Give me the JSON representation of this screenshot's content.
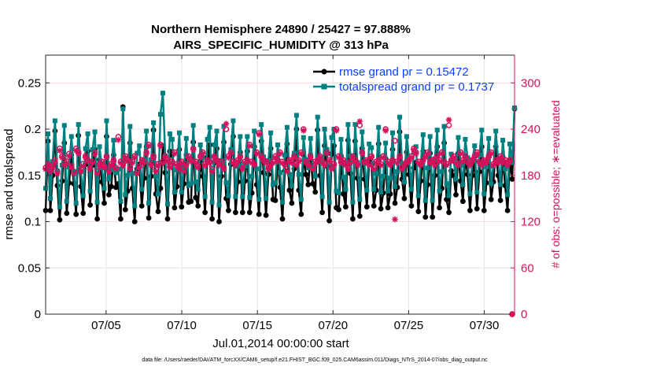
{
  "chart_data": {
    "type": "line",
    "title_line1": "Northern Hemisphere 24890 / 25427 = 97.888%",
    "title_line2": "AIRS_SPECIFIC_HUMIDITY @ 313 hPa",
    "xlabel": "Jul.01,2014 00:00:00 start",
    "ylabel_left": "rmse and totalspread",
    "ylabel_right": "# of obs: o=possible; ∗=evaluated",
    "footer": "data file: /Users/raeder/DAI/ATM_forcXX/CAM6_setup/f.e21.FHIST_BGC.f09_025.CAM6assim.011/Diags_NTrS_2014-07/obs_diag_output.nc",
    "x_ticks": [
      "07/05",
      "07/10",
      "07/15",
      "07/20",
      "07/25",
      "07/30"
    ],
    "x_tick_days": [
      5,
      10,
      15,
      20,
      25,
      30
    ],
    "xlim_days": [
      1.0,
      32.0
    ],
    "ylim_left": [
      0,
      0.28
    ],
    "yticks_left": [
      "0",
      "0.05",
      "0.1",
      "0.15",
      "0.2",
      "0.25"
    ],
    "yticks_left_values": [
      0,
      0.05,
      0.1,
      0.15,
      0.2,
      0.25
    ],
    "ylim_right": [
      0,
      336
    ],
    "yticks_right": [
      "0",
      "60",
      "120",
      "180",
      "240",
      "300"
    ],
    "yticks_right_values": [
      0,
      60,
      120,
      180,
      240,
      300
    ],
    "grid": true,
    "legend_location": "top-right",
    "colors": {
      "rmse": "#000000",
      "spread": "#008080",
      "obs": "#d6105b",
      "legend_text": "#0a3fff"
    },
    "series": [
      {
        "name": "rmse grand pr = 0.15472",
        "axis": "left",
        "values": [
          0.112,
          0.187,
          0.112,
          0.15,
          0.198,
          0.139,
          0.102,
          0.144,
          0.185,
          0.109,
          0.142,
          0.172,
          0.141,
          0.108,
          0.193,
          0.138,
          0.109,
          0.162,
          0.176,
          0.118,
          0.161,
          0.178,
          0.103,
          0.167,
          0.143,
          0.12,
          0.192,
          0.129,
          0.138,
          0.172,
          0.137,
          0.141,
          0.103,
          0.224,
          0.113,
          0.133,
          0.185,
          0.136,
          0.1,
          0.157,
          0.162,
          0.117,
          0.147,
          0.181,
          0.104,
          0.149,
          0.199,
          0.13,
          0.111,
          0.136,
          0.182,
          0.153,
          0.103,
          0.176,
          0.172,
          0.115,
          0.138,
          0.178,
          0.116,
          0.141,
          0.172,
          0.121,
          0.122,
          0.186,
          0.126,
          0.117,
          0.166,
          0.149,
          0.11,
          0.17,
          0.183,
          0.103,
          0.164,
          0.179,
          0.1,
          0.149,
          0.186,
          0.125,
          0.112,
          0.162,
          0.192,
          0.11,
          0.143,
          0.175,
          0.11,
          0.144,
          0.176,
          0.11,
          0.131,
          0.181,
          0.14,
          0.108,
          0.187,
          0.153,
          0.107,
          0.151,
          0.179,
          0.124,
          0.123,
          0.167,
          0.137,
          0.103,
          0.155,
          0.184,
          0.134,
          0.12,
          0.157,
          0.2,
          0.134,
          0.108,
          0.172,
          0.151,
          0.14,
          0.172,
          0.141,
          0.132,
          0.199,
          0.15,
          0.11,
          0.182,
          0.16,
          0.101,
          0.173,
          0.182,
          0.115,
          0.113,
          0.171,
          0.13,
          0.116,
          0.188,
          0.152,
          0.103,
          0.187,
          0.147,
          0.106,
          0.179,
          0.146,
          0.116,
          0.166,
          0.162,
          0.117,
          0.134,
          0.184,
          0.114,
          0.131,
          0.168,
          0.115,
          0.13,
          0.178,
          0.12,
          0.137,
          0.197,
          0.146,
          0.125,
          0.175,
          0.151,
          0.117,
          0.158,
          0.164,
          0.111,
          0.144,
          0.176,
          0.105,
          0.14,
          0.174,
          0.105,
          0.15,
          0.181,
          0.115,
          0.136,
          0.185,
          0.124,
          0.11,
          0.155,
          0.15,
          0.129,
          0.174,
          0.144,
          0.122,
          0.171,
          0.151,
          0.112,
          0.15,
          0.165,
          0.114,
          0.154,
          0.181,
          0.112,
          0.142,
          0.172,
          0.124,
          0.143,
          0.181,
          0.15,
          0.123,
          0.17,
          0.139,
          0.112,
          0.167,
          0.146,
          0.222
        ]
      },
      {
        "name": "totalspread grand pr = 0.1737",
        "axis": "left",
        "values": [
          0.136,
          0.195,
          0.125,
          0.165,
          0.209,
          0.155,
          0.116,
          0.161,
          0.204,
          0.122,
          0.159,
          0.192,
          0.154,
          0.12,
          0.205,
          0.154,
          0.128,
          0.179,
          0.195,
          0.133,
          0.178,
          0.197,
          0.121,
          0.181,
          0.158,
          0.136,
          0.209,
          0.146,
          0.156,
          0.188,
          0.153,
          0.157,
          0.122,
          0.222,
          0.129,
          0.15,
          0.203,
          0.152,
          0.117,
          0.174,
          0.182,
          0.135,
          0.167,
          0.198,
          0.12,
          0.167,
          0.207,
          0.149,
          0.13,
          0.216,
          0.239,
          0.171,
          0.119,
          0.195,
          0.189,
          0.132,
          0.156,
          0.196,
          0.132,
          0.159,
          0.19,
          0.139,
          0.141,
          0.204,
          0.143,
          0.135,
          0.183,
          0.169,
          0.127,
          0.189,
          0.202,
          0.121,
          0.183,
          0.198,
          0.118,
          0.166,
          0.203,
          0.142,
          0.128,
          0.178,
          0.209,
          0.127,
          0.16,
          0.192,
          0.127,
          0.16,
          0.192,
          0.126,
          0.149,
          0.198,
          0.157,
          0.124,
          0.205,
          0.17,
          0.125,
          0.166,
          0.196,
          0.14,
          0.142,
          0.183,
          0.153,
          0.121,
          0.172,
          0.202,
          0.151,
          0.139,
          0.174,
          0.215,
          0.151,
          0.124,
          0.191,
          0.167,
          0.158,
          0.19,
          0.158,
          0.149,
          0.213,
          0.168,
          0.127,
          0.2,
          0.178,
          0.121,
          0.191,
          0.2,
          0.133,
          0.131,
          0.189,
          0.148,
          0.135,
          0.205,
          0.171,
          0.121,
          0.205,
          0.164,
          0.124,
          0.197,
          0.163,
          0.134,
          0.184,
          0.18,
          0.135,
          0.152,
          0.202,
          0.132,
          0.149,
          0.185,
          0.133,
          0.147,
          0.196,
          0.138,
          0.154,
          0.213,
          0.163,
          0.143,
          0.192,
          0.169,
          0.135,
          0.175,
          0.181,
          0.128,
          0.162,
          0.194,
          0.123,
          0.158,
          0.192,
          0.123,
          0.168,
          0.199,
          0.133,
          0.154,
          0.203,
          0.141,
          0.128,
          0.173,
          0.168,
          0.146,
          0.191,
          0.161,
          0.14,
          0.189,
          0.169,
          0.13,
          0.167,
          0.182,
          0.132,
          0.172,
          0.199,
          0.13,
          0.159,
          0.19,
          0.141,
          0.16,
          0.198,
          0.167,
          0.14,
          0.188,
          0.157,
          0.129,
          0.184,
          0.164,
          0.223
        ]
      },
      {
        "name": "obs possible",
        "axis": "right",
        "marker": "o",
        "values": [
          190,
          195,
          188,
          192,
          200,
          185,
          215,
          205,
          195,
          198,
          208,
          192,
          185,
          215,
          210,
          188,
          195,
          205,
          200,
          190,
          198,
          210,
          185,
          195,
          198,
          192,
          205,
          188,
          195,
          200,
          190,
          230,
          198,
          195,
          205,
          200,
          190,
          198,
          205,
          185,
          192,
          200,
          198,
          210,
          220,
          195,
          205,
          188,
          195,
          220,
          198,
          205,
          200,
          192,
          198,
          210,
          195,
          190,
          198,
          188,
          195,
          205,
          200,
          215,
          198,
          192,
          205,
          210,
          195,
          200,
          198,
          188,
          205,
          200,
          195,
          198,
          190,
          240,
          205,
          210,
          198,
          195,
          200,
          205,
          190,
          198,
          200,
          220,
          198,
          195,
          210,
          235,
          205,
          200,
          198,
          190,
          195,
          198,
          205,
          200,
          210,
          198,
          195,
          188,
          200,
          198,
          205,
          195,
          200,
          210,
          240,
          198,
          195,
          205,
          190,
          198,
          200,
          205,
          198,
          195,
          210,
          200,
          190,
          195,
          240,
          205,
          198,
          200,
          195,
          190,
          198,
          205,
          200,
          195,
          245,
          210,
          198,
          200,
          195,
          205,
          190,
          198,
          200,
          195,
          205,
          240,
          198,
          195,
          200,
          225,
          198,
          205,
          190,
          195,
          198,
          200,
          205,
          215,
          210,
          198,
          195,
          200,
          205,
          210,
          198,
          200,
          195,
          205,
          200,
          210,
          198,
          195,
          245,
          200,
          205,
          198,
          195,
          210,
          200,
          205,
          198,
          195,
          200,
          205,
          210,
          198,
          195,
          200,
          198,
          205,
          210,
          195,
          200,
          198,
          205,
          198,
          200,
          195,
          200,
          0
        ]
      },
      {
        "name": "obs evaluated",
        "axis": "right",
        "marker": "*",
        "values": [
          188,
          193,
          185,
          190,
          196,
          182,
          212,
          203,
          193,
          196,
          205,
          190,
          182,
          212,
          208,
          185,
          192,
          203,
          198,
          188,
          196,
          207,
          182,
          192,
          196,
          190,
          203,
          185,
          193,
          198,
          188,
          226,
          196,
          193,
          203,
          198,
          188,
          196,
          203,
          182,
          190,
          198,
          196,
          208,
          218,
          193,
          203,
          185,
          193,
          218,
          196,
          203,
          198,
          190,
          196,
          208,
          193,
          188,
          196,
          185,
          193,
          203,
          198,
          213,
          196,
          190,
          203,
          208,
          193,
          198,
          196,
          185,
          203,
          198,
          193,
          196,
          188,
          247,
          203,
          208,
          196,
          193,
          198,
          203,
          188,
          196,
          198,
          218,
          196,
          193,
          208,
          233,
          203,
          198,
          196,
          188,
          193,
          196,
          203,
          198,
          208,
          196,
          193,
          185,
          198,
          196,
          203,
          193,
          198,
          208,
          238,
          196,
          193,
          203,
          188,
          196,
          198,
          203,
          196,
          193,
          208,
          198,
          188,
          193,
          238,
          203,
          196,
          198,
          193,
          188,
          196,
          203,
          198,
          193,
          250,
          208,
          196,
          198,
          193,
          203,
          188,
          196,
          198,
          193,
          203,
          238,
          196,
          193,
          198,
          123,
          196,
          203,
          188,
          193,
          196,
          198,
          203,
          213,
          208,
          196,
          193,
          198,
          203,
          208,
          196,
          198,
          193,
          203,
          198,
          208,
          196,
          193,
          252,
          198,
          203,
          196,
          193,
          208,
          198,
          203,
          196,
          193,
          198,
          203,
          208,
          196,
          193,
          198,
          196,
          203,
          208,
          193,
          198,
          196,
          203,
          196,
          198,
          193,
          198,
          0
        ]
      }
    ]
  }
}
